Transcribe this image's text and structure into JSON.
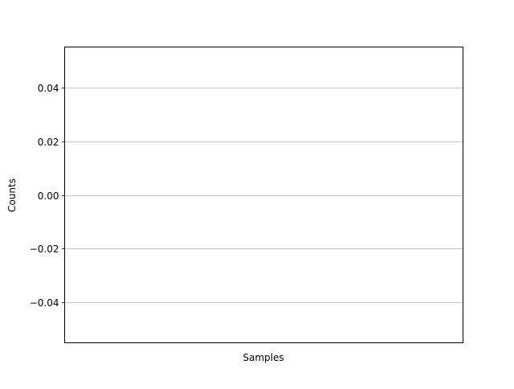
{
  "chart_data": {
    "type": "bar",
    "title": "",
    "xlabel": "Samples",
    "ylabel": "Counts",
    "categories": [],
    "values": [],
    "ylim": [
      -0.055,
      0.055
    ],
    "yticks": [
      0.04,
      0.02,
      0.0,
      -0.02,
      -0.04
    ],
    "ytick_labels": [
      "0.04",
      "0.02",
      "0.00",
      "−0.02",
      "−0.04"
    ],
    "grid": "horizontal",
    "colors": {
      "grid": "#b0b0b0",
      "axes": "#000000",
      "background": "#ffffff"
    }
  }
}
